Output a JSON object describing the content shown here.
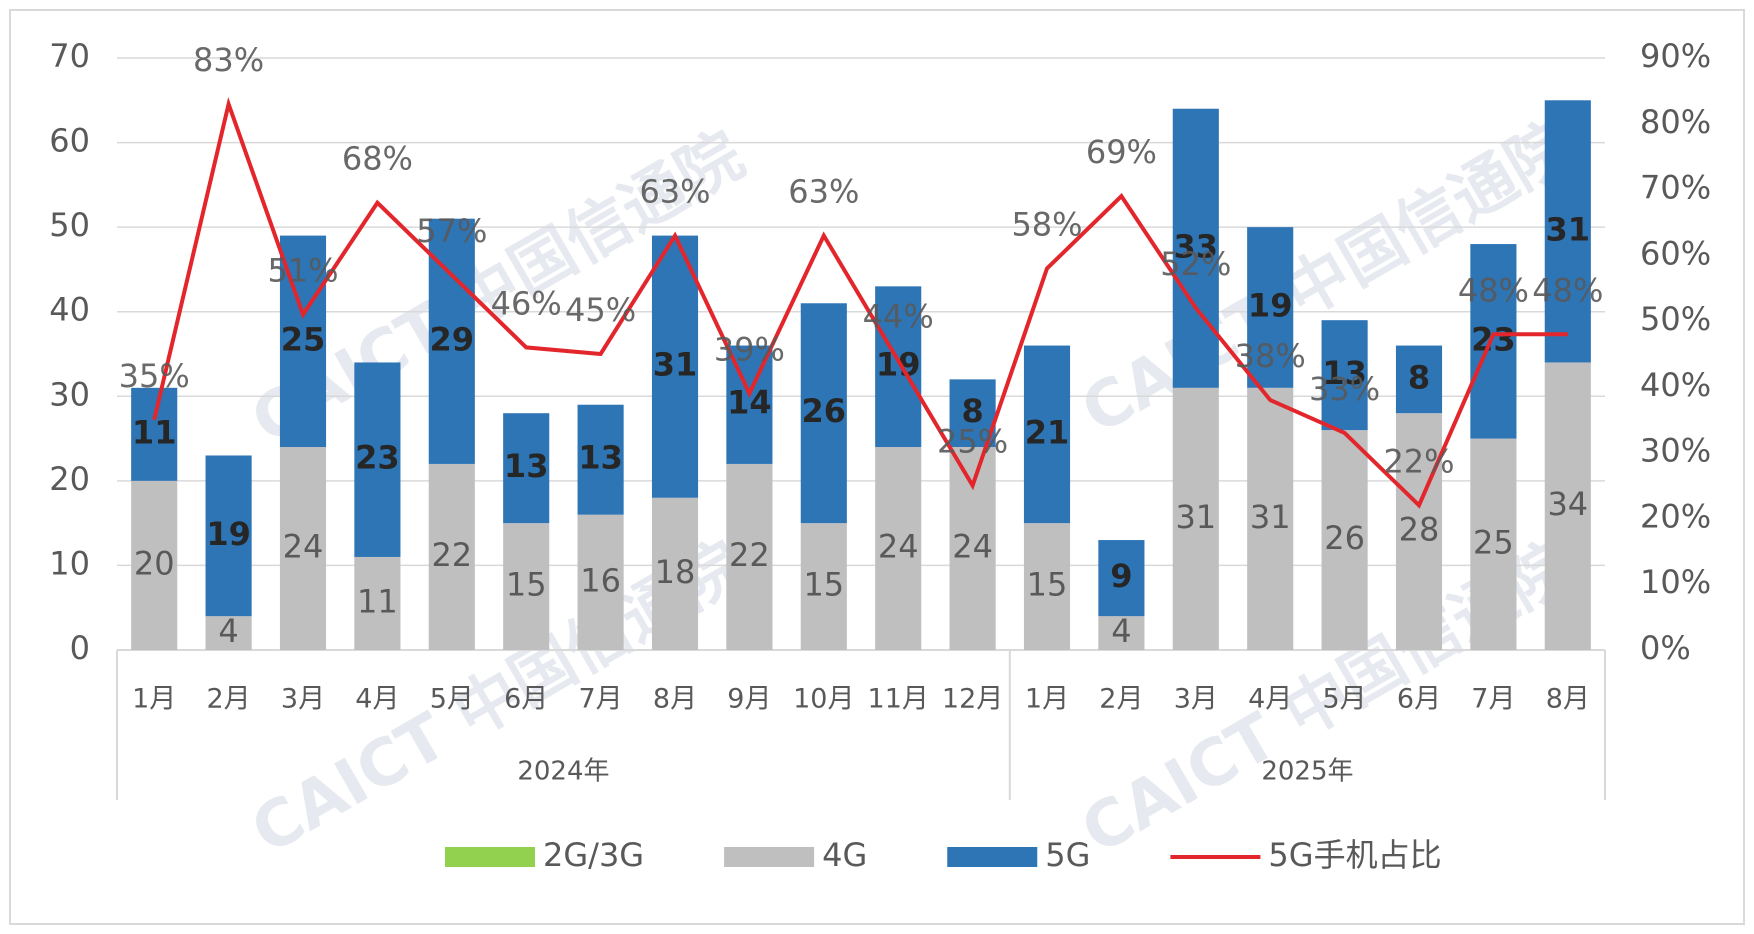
{
  "chart_data": {
    "type": "bar",
    "groups": [
      {
        "label": "2024年",
        "categories": [
          "1月",
          "2月",
          "3月",
          "4月",
          "5月",
          "6月",
          "7月",
          "8月",
          "9月",
          "10月",
          "11月",
          "12月"
        ]
      },
      {
        "label": "2025年",
        "categories": [
          "1月",
          "2月",
          "3月",
          "4月",
          "5月",
          "6月",
          "7月",
          "8月"
        ]
      }
    ],
    "series": [
      {
        "name": "2G/3G",
        "color": "#92d050",
        "values": [
          0,
          0,
          0,
          0,
          0,
          0,
          0,
          0,
          0,
          0,
          0,
          0,
          0,
          0,
          0,
          0,
          0,
          0,
          0,
          0
        ]
      },
      {
        "name": "4G",
        "color": "#bfbfbf",
        "values": [
          20,
          4,
          24,
          11,
          22,
          15,
          16,
          18,
          22,
          15,
          24,
          24,
          15,
          4,
          31,
          31,
          26,
          28,
          25,
          34
        ]
      },
      {
        "name": "5G",
        "color": "#2e75b6",
        "values": [
          11,
          19,
          25,
          23,
          29,
          13,
          13,
          31,
          14,
          26,
          19,
          8,
          21,
          9,
          33,
          19,
          13,
          8,
          23,
          31
        ]
      },
      {
        "name": "5G手机占比",
        "color": "#e3262b",
        "axis": "y2",
        "type": "line",
        "values": [
          35,
          83,
          51,
          68,
          57,
          46,
          45,
          63,
          39,
          63,
          44,
          25,
          58,
          69,
          52,
          38,
          33,
          22,
          48,
          48
        ],
        "value_labels": [
          "35%",
          "83%",
          "51%",
          "68%",
          "57%",
          "46%",
          "45%",
          "63%",
          "39%",
          "63%",
          "44%",
          "25%",
          "58%",
          "69%",
          "52%",
          "38%",
          "33%",
          "22%",
          "48%",
          "48%"
        ]
      }
    ],
    "stacked": true,
    "ylim": [
      0,
      70
    ],
    "yticks": [
      0,
      10,
      20,
      30,
      40,
      50,
      60,
      70
    ],
    "y2lim": [
      0,
      90
    ],
    "y2ticks": [
      {
        "value": 0,
        "label": "0%"
      },
      {
        "value": 10,
        "label": "10%"
      },
      {
        "value": 20,
        "label": "20%"
      },
      {
        "value": 30,
        "label": "30%"
      },
      {
        "value": 40,
        "label": "40%"
      },
      {
        "value": 50,
        "label": "50%"
      },
      {
        "value": 60,
        "label": "60%"
      },
      {
        "value": 70,
        "label": "70%"
      },
      {
        "value": 80,
        "label": "80%"
      },
      {
        "value": 90,
        "label": "90%"
      }
    ],
    "grid": true,
    "legend": "bottom",
    "watermark": "CAICT 中国信通院"
  }
}
